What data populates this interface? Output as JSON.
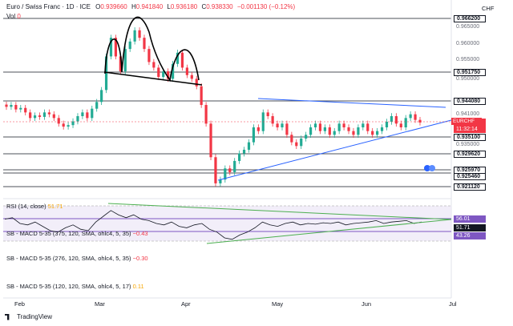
{
  "header": {
    "symbol_line": "Euro / Swiss Franc · 1D · ICE",
    "o_label": "O",
    "o_value": "0.939660",
    "h_label": "H",
    "h_value": "0.941840",
    "l_label": "L",
    "l_value": "0.936180",
    "c_label": "C",
    "c_value": "0.938330",
    "change": "−0.001130 (−0.12%)",
    "vol_label": "Vol",
    "vol_value": "0"
  },
  "currency": "CHF",
  "symbol_tag": "EURCHF",
  "price_levels": [
    {
      "label": "0.966200",
      "boxed": true
    },
    {
      "label": "0.965000",
      "boxed": false
    },
    {
      "label": "0.960000",
      "boxed": false
    },
    {
      "label": "0.955000",
      "boxed": false
    },
    {
      "label": "0.951750",
      "boxed": true
    },
    {
      "label": "0.950000",
      "boxed": false
    },
    {
      "label": "0.944080",
      "boxed": true
    },
    {
      "label": "0.941000",
      "boxed": false
    },
    {
      "label": "0.938330",
      "boxed": true,
      "highlight": true
    },
    {
      "label": "11:32:14",
      "boxed": true,
      "highlight": true
    },
    {
      "label": "0.935100",
      "boxed": true
    },
    {
      "label": "0.935000",
      "boxed": false
    },
    {
      "label": "0.929620",
      "boxed": true
    },
    {
      "label": "0.925970",
      "boxed": true
    },
    {
      "label": "0.925460",
      "boxed": true
    },
    {
      "label": "0.921120",
      "boxed": true
    }
  ],
  "rsi": {
    "label": "RSI (14, close)",
    "value": "51.71",
    "levels": [
      "56.01",
      "51.71",
      "43.26"
    ]
  },
  "macd": [
    {
      "label": "SB - MACD 5-35 (375, 120, SMA, ohlc4, 5, 35)",
      "value": "−0.43"
    },
    {
      "label": "SB - MACD 5-35 (276, 120, SMA, ohlc4, 5, 35)",
      "value": "−0.30"
    },
    {
      "label": "SB - MACD 5-35 (120, 120, SMA, ohlc4, 5, 17)",
      "value": "0.11"
    }
  ],
  "months": [
    "Feb",
    "Mar",
    "Apr",
    "May",
    "Jun",
    "Jul"
  ],
  "brand": "TradingView",
  "colors": {
    "up": "#22ab94",
    "down": "#f23645",
    "trend": "#2962ff",
    "pattern": "#000000",
    "rsi_line": "#7e57c2",
    "rsi_channel": "#4caf50"
  }
}
